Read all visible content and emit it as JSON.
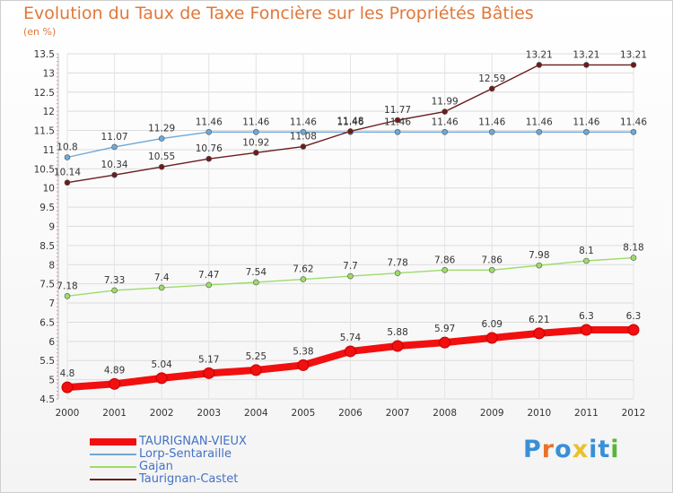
{
  "title": "Evolution du Taux de Taxe Foncière sur les Propriétés Bâties",
  "subtitle": "(en %)",
  "brand": {
    "letters": [
      "P",
      "r",
      "o",
      "x",
      "i",
      "t",
      "i"
    ],
    "colors": [
      "#3a8fd6",
      "#e8732a",
      "#3a8fd6",
      "#e8c22a",
      "#3a8fd6",
      "#3a8fd6",
      "#5ab43c"
    ]
  },
  "chart_data": {
    "type": "line",
    "title": "Evolution du Taux de Taxe Foncière sur les Propriétés Bâties",
    "ylabel": "(en %)",
    "xlabel": "",
    "ylim": [
      4.5,
      13.5
    ],
    "y_ticks": [
      "4.5",
      "5",
      "5.5",
      "6",
      "6.5",
      "7",
      "7.5",
      "8",
      "8.5",
      "9",
      "9.5",
      "10",
      "10.5",
      "11",
      "11.5",
      "12",
      "12.5",
      "13",
      "13.5"
    ],
    "categories": [
      "2000",
      "2001",
      "2002",
      "2003",
      "2004",
      "2005",
      "2006",
      "2007",
      "2008",
      "2009",
      "2010",
      "2011",
      "2012"
    ],
    "grid": true,
    "legend_position": "bottom-left",
    "series": [
      {
        "name": "TAURIGNAN-VIEUX",
        "color": "#f20f0f",
        "thick": true,
        "values": [
          4.8,
          4.89,
          5.04,
          5.17,
          5.25,
          5.38,
          5.74,
          5.88,
          5.97,
          6.09,
          6.21,
          6.3,
          6.3
        ],
        "labels": [
          "4.8",
          "4.89",
          "5.04",
          "5.17",
          "5.25",
          "5.38",
          "5.74",
          "5.88",
          "5.97",
          "6.09",
          "6.21",
          "6.3",
          "6.3"
        ]
      },
      {
        "name": "Lorp-Sentaraille",
        "color": "#6fa8d6",
        "thick": false,
        "values": [
          10.8,
          11.07,
          11.29,
          11.46,
          11.46,
          11.46,
          11.46,
          11.46,
          11.46,
          11.46,
          11.46,
          11.46,
          11.46
        ],
        "labels": [
          "10.8",
          "11.07",
          "11.29",
          "11.46",
          "11.46",
          "11.46",
          "11.46",
          "11.46",
          "11.46",
          "11.46",
          "11.46",
          "11.46",
          "11.46"
        ]
      },
      {
        "name": "Gajan",
        "color": "#9ddc6a",
        "thick": false,
        "values": [
          7.18,
          7.33,
          7.4,
          7.47,
          7.54,
          7.62,
          7.7,
          7.78,
          7.86,
          7.86,
          7.98,
          8.1,
          8.18
        ],
        "labels": [
          "7.18",
          "7.33",
          "7.4",
          "7.47",
          "7.54",
          "7.62",
          "7.7",
          "7.78",
          "7.86",
          "7.86",
          "7.98",
          "8.1",
          "8.18"
        ]
      },
      {
        "name": "Taurignan-Castet",
        "color": "#6b1c1c",
        "thick": false,
        "values": [
          10.14,
          10.34,
          10.55,
          10.76,
          10.92,
          11.08,
          11.48,
          11.77,
          11.99,
          12.59,
          13.21,
          13.21,
          13.21
        ],
        "labels": [
          "10.14",
          "10.34",
          "10.55",
          "10.76",
          "10.92",
          "11.08",
          "11.48",
          "11.77",
          "11.99",
          "12.59",
          "13.21",
          "13.21",
          "13.21"
        ]
      }
    ]
  }
}
